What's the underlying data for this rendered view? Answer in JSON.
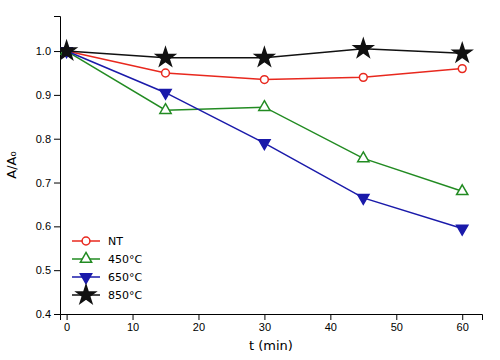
{
  "chart_data": {
    "type": "line",
    "xlabel": "t (min)",
    "ylabel": "A/A₀",
    "x": [
      0,
      15,
      30,
      45,
      60
    ],
    "series": [
      {
        "name": "NT",
        "color": "#e8281e",
        "marker": "circle-open",
        "values": [
          1.0,
          0.95,
          0.935,
          0.94,
          0.96
        ]
      },
      {
        "name": "450°C",
        "color": "#228B22",
        "marker": "triangle-up-open",
        "values": [
          1.0,
          0.865,
          0.872,
          0.755,
          0.68
        ]
      },
      {
        "name": "650°C",
        "color": "#1a1aaa",
        "marker": "triangle-down",
        "values": [
          1.0,
          0.905,
          0.79,
          0.665,
          0.595
        ]
      },
      {
        "name": "850°C",
        "color": "#111111",
        "marker": "star",
        "values": [
          1.0,
          0.985,
          0.985,
          1.005,
          0.995
        ]
      }
    ],
    "xlim": [
      -1,
      63
    ],
    "ylim": [
      0.4,
      1.08
    ],
    "xticks": [
      0,
      10,
      20,
      30,
      40,
      50,
      60
    ],
    "yticks": [
      0.4,
      0.5,
      0.6,
      0.7,
      0.8,
      0.9,
      {
        "value": 1.0,
        "label": "1.0"
      }
    ],
    "grid": false,
    "legend": "lower left"
  }
}
